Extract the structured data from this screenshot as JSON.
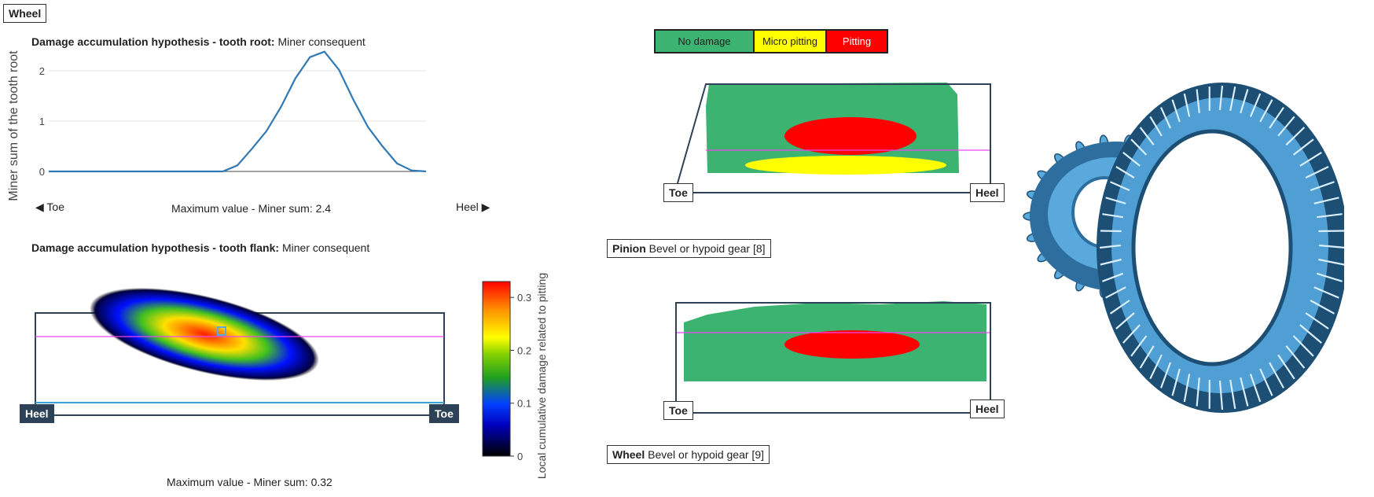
{
  "header": {
    "gear_tag": "Wheel"
  },
  "root_chart": {
    "title_bold": "Damage accumulation hypothesis - tooth root:",
    "title_rest": "Miner consequent",
    "ylabel": "Miner sum of the tooth root",
    "left_label": "◀ Toe",
    "right_label": "Heel ▶",
    "max_text": "Maximum value - Miner sum: 2.4"
  },
  "flank_chart": {
    "title_bold": "Damage accumulation hypothesis - tooth flank:",
    "title_rest": "Miner consequent",
    "left_label": "Heel",
    "right_label": "Toe",
    "max_text": "Maximum value - Miner sum: 0.32",
    "colorbar_label": "Local cumulative damage related to pitting",
    "colorbar_ticks": [
      "0",
      "0.1",
      "0.2",
      "0.3"
    ]
  },
  "damage_legend": [
    {
      "label": "No damage",
      "color": "#3cb371",
      "text_color": "#222222"
    },
    {
      "label": "Micro pitting",
      "color": "#ffff00",
      "text_color": "#222222"
    },
    {
      "label": "Pitting",
      "color": "#ff0000",
      "text_color": "#ffffff"
    }
  ],
  "pinion_map": {
    "left_label": "Toe",
    "right_label": "Heel",
    "tag_bold": "Pinion",
    "tag_rest": "Bevel or hypoid gear [8]"
  },
  "wheel_map": {
    "left_label": "Toe",
    "right_label": "Heel",
    "tag_bold": "Wheel",
    "tag_rest": "Bevel or hypoid gear [9]"
  },
  "chart_data": [
    {
      "type": "line",
      "title": "Damage accumulation hypothesis - tooth root: Miner consequent",
      "ylabel": "Miner sum of the tooth root",
      "xlabel": "",
      "x": [
        0,
        1,
        2,
        3,
        4,
        5,
        6,
        7,
        8,
        9,
        10,
        11,
        12,
        13,
        14,
        15,
        16,
        17,
        18,
        19,
        20,
        21,
        22,
        23,
        24,
        25,
        26
      ],
      "values": [
        0,
        0,
        0,
        0,
        0,
        0,
        0,
        0,
        0,
        0,
        0,
        0,
        0,
        0.12,
        0.45,
        0.8,
        1.28,
        1.85,
        2.27,
        2.38,
        2.02,
        1.42,
        0.88,
        0.5,
        0.16,
        0.02,
        0
      ],
      "ylim": [
        0,
        2.5
      ],
      "yticks": [
        0,
        1,
        2
      ],
      "grid": true,
      "max_value": 2.4
    },
    {
      "type": "heatmap",
      "title": "Damage accumulation hypothesis - tooth flank: Miner consequent",
      "colorbar_label": "Local cumulative damage related to pitting",
      "range": [
        0,
        0.33
      ],
      "colorbar_ticks": [
        0,
        0.1,
        0.2,
        0.3
      ],
      "max_value": 0.32
    }
  ],
  "colors": {
    "line": "#2f79b5",
    "grid": "#e6e6e6",
    "frame": "#2e4257",
    "pinkline": "#ee44ee",
    "gear": "#5aa9dc"
  }
}
